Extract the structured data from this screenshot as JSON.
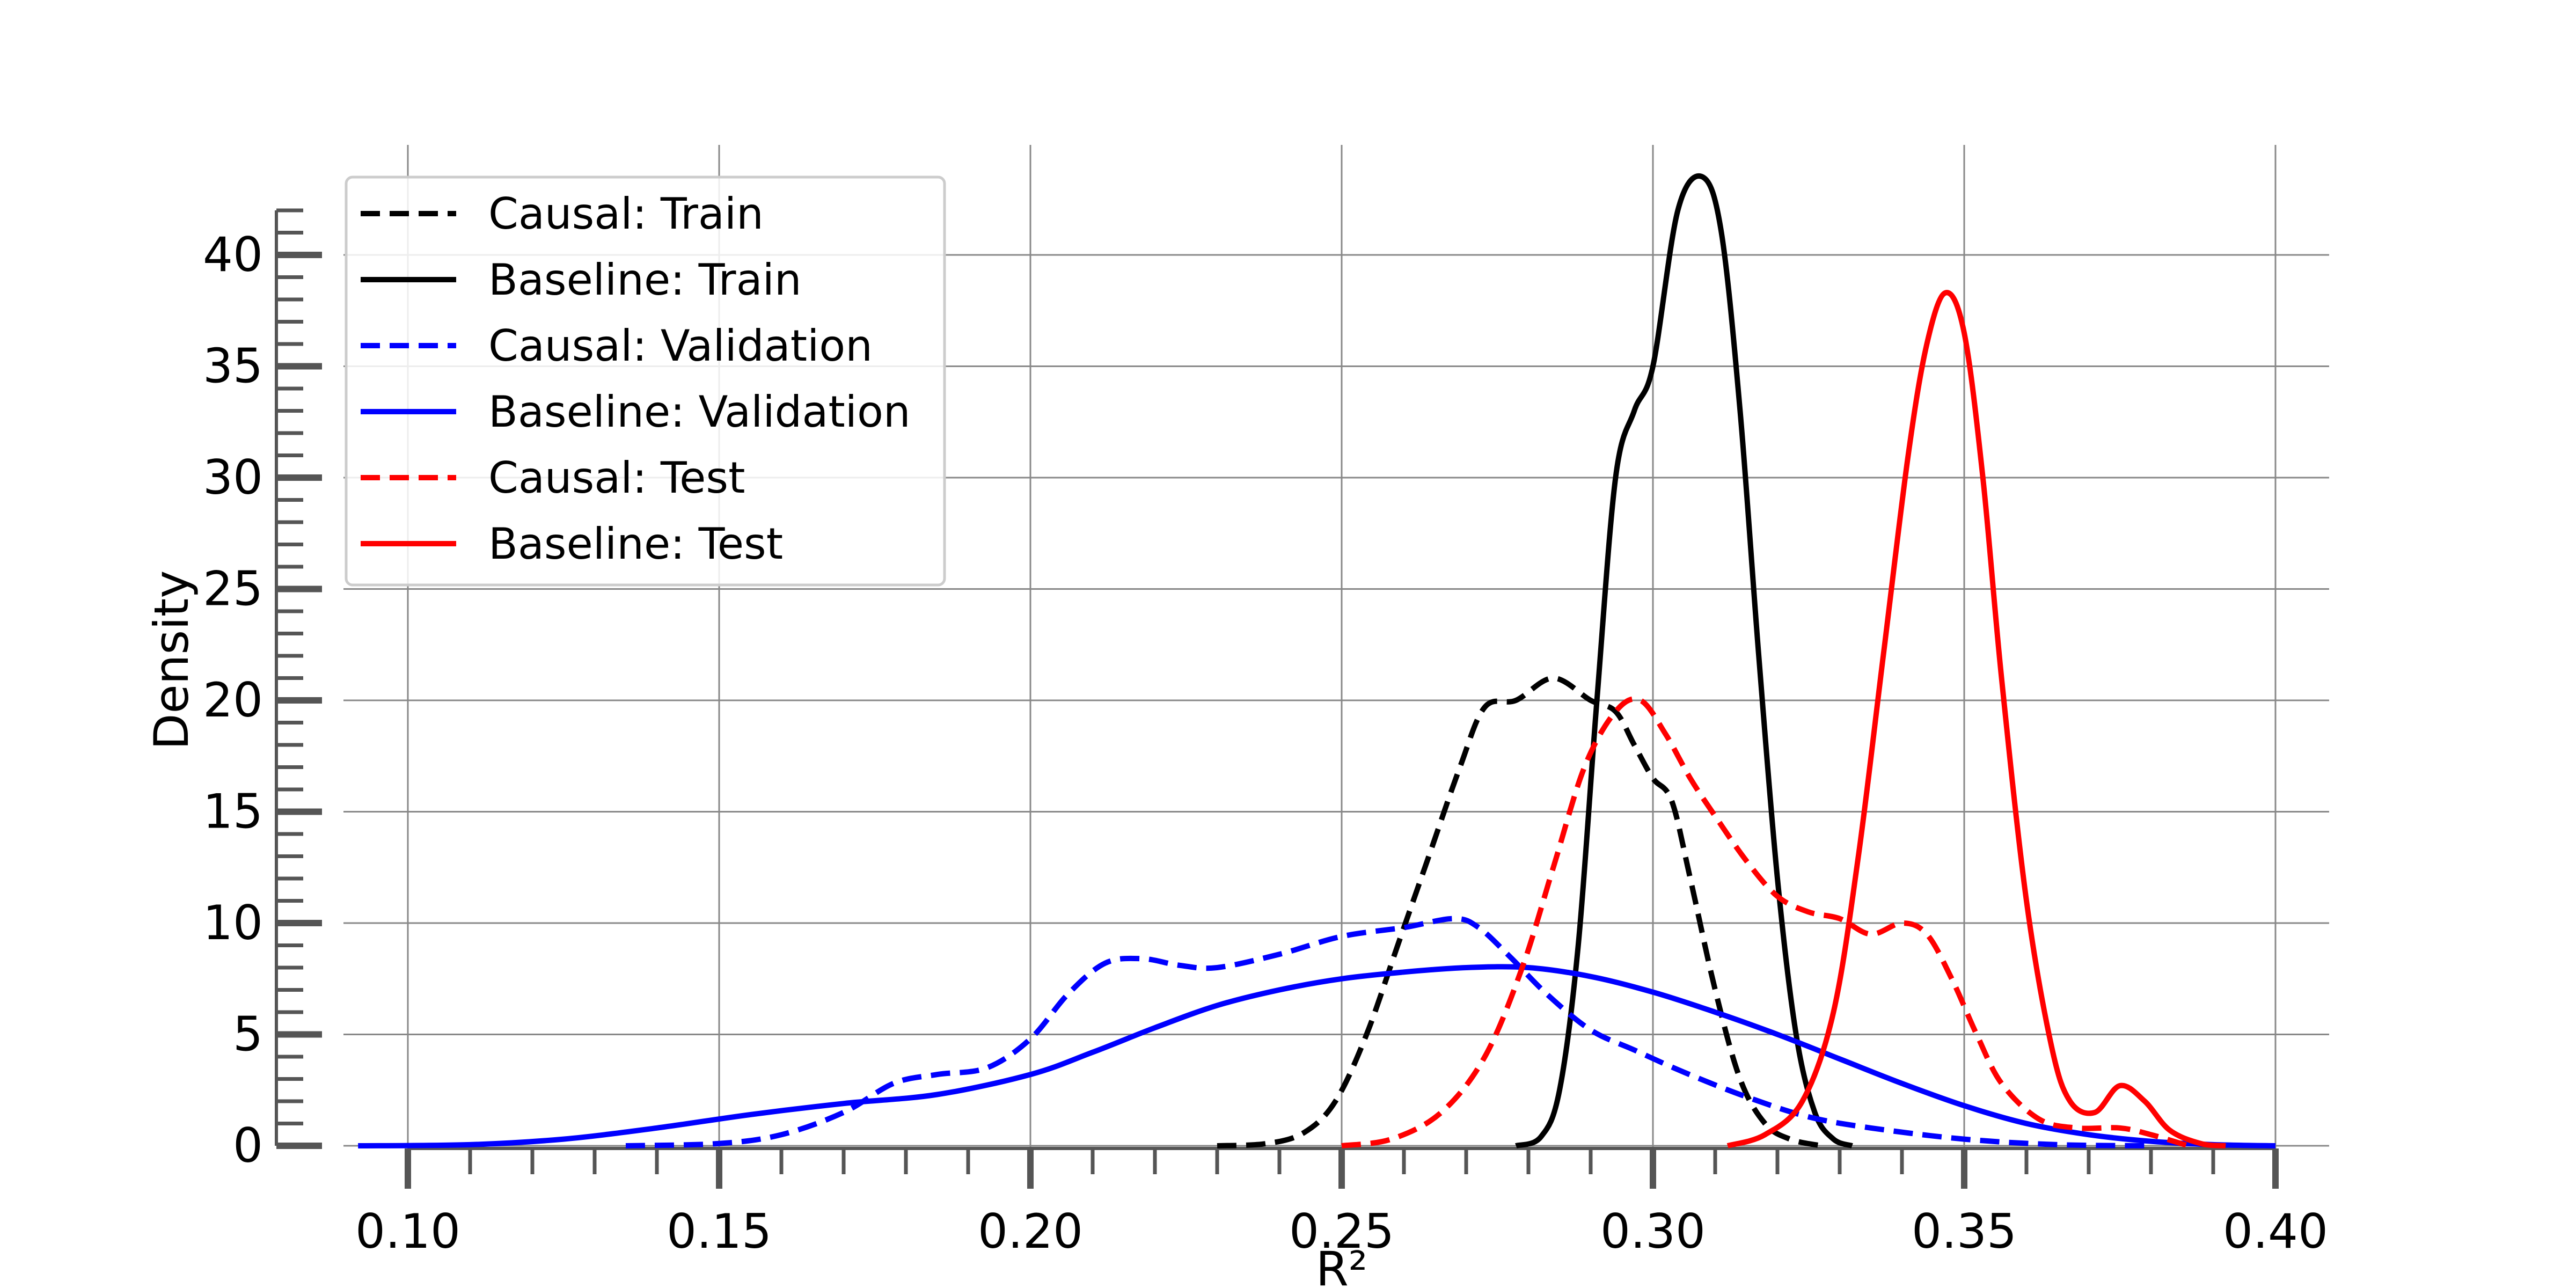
{
  "chart_data": {
    "type": "line",
    "title": "",
    "xlabel": "R²",
    "ylabel": "Density",
    "xlim": [
      0.09,
      0.41
    ],
    "ylim": [
      -1,
      46
    ],
    "x_ticks": [
      0.1,
      0.15,
      0.2,
      0.25,
      0.3,
      0.35,
      0.4
    ],
    "x_tick_labels": [
      "0.10",
      "0.15",
      "0.20",
      "0.25",
      "0.30",
      "0.35",
      "0.40"
    ],
    "y_ticks": [
      0,
      5,
      10,
      15,
      20,
      25,
      30,
      35,
      40
    ],
    "y_tick_labels": [
      "0",
      "5",
      "10",
      "15",
      "20",
      "25",
      "30",
      "35",
      "40"
    ],
    "grid": true,
    "legend_position": "upper-left",
    "series": [
      {
        "name": "Causal: Train",
        "color": "#000000",
        "dashed": true,
        "points": [
          [
            0.23,
            0
          ],
          [
            0.238,
            0.1
          ],
          [
            0.244,
            0.6
          ],
          [
            0.249,
            2
          ],
          [
            0.254,
            5
          ],
          [
            0.259,
            9
          ],
          [
            0.264,
            13
          ],
          [
            0.269,
            17
          ],
          [
            0.273,
            19.7
          ],
          [
            0.278,
            20
          ],
          [
            0.284,
            21
          ],
          [
            0.29,
            20
          ],
          [
            0.294,
            19.5
          ],
          [
            0.297,
            18
          ],
          [
            0.3,
            16.5
          ],
          [
            0.303,
            15.5
          ],
          [
            0.306,
            12
          ],
          [
            0.31,
            7
          ],
          [
            0.314,
            3
          ],
          [
            0.318,
            1
          ],
          [
            0.322,
            0.3
          ],
          [
            0.327,
            0
          ]
        ]
      },
      {
        "name": "Baseline: Train",
        "color": "#000000",
        "dashed": false,
        "points": [
          [
            0.278,
            0
          ],
          [
            0.282,
            0.4
          ],
          [
            0.285,
            2.5
          ],
          [
            0.288,
            9
          ],
          [
            0.291,
            20
          ],
          [
            0.294,
            30
          ],
          [
            0.297,
            33
          ],
          [
            0.3,
            35
          ],
          [
            0.304,
            42
          ],
          [
            0.308,
            43.5
          ],
          [
            0.311,
            41
          ],
          [
            0.314,
            33
          ],
          [
            0.317,
            22
          ],
          [
            0.32,
            12
          ],
          [
            0.323,
            5
          ],
          [
            0.326,
            1.5
          ],
          [
            0.329,
            0.3
          ],
          [
            0.332,
            0
          ]
        ]
      },
      {
        "name": "Causal: Validation",
        "color": "#0000ff",
        "dashed": true,
        "points": [
          [
            0.135,
            0
          ],
          [
            0.15,
            0.1
          ],
          [
            0.16,
            0.5
          ],
          [
            0.17,
            1.5
          ],
          [
            0.178,
            2.8
          ],
          [
            0.185,
            3.2
          ],
          [
            0.193,
            3.5
          ],
          [
            0.2,
            4.8
          ],
          [
            0.206,
            6.8
          ],
          [
            0.212,
            8.2
          ],
          [
            0.218,
            8.4
          ],
          [
            0.224,
            8.1
          ],
          [
            0.23,
            8.0
          ],
          [
            0.24,
            8.6
          ],
          [
            0.25,
            9.4
          ],
          [
            0.26,
            9.8
          ],
          [
            0.268,
            10.2
          ],
          [
            0.272,
            9.8
          ],
          [
            0.277,
            8.5
          ],
          [
            0.283,
            6.8
          ],
          [
            0.29,
            5.2
          ],
          [
            0.297,
            4.3
          ],
          [
            0.305,
            3.3
          ],
          [
            0.315,
            2.2
          ],
          [
            0.325,
            1.3
          ],
          [
            0.335,
            0.8
          ],
          [
            0.35,
            0.3
          ],
          [
            0.365,
            0.05
          ],
          [
            0.38,
            0
          ]
        ]
      },
      {
        "name": "Baseline: Validation",
        "color": "#0000ff",
        "dashed": false,
        "points": [
          [
            0.092,
            0
          ],
          [
            0.11,
            0.05
          ],
          [
            0.125,
            0.3
          ],
          [
            0.14,
            0.8
          ],
          [
            0.155,
            1.4
          ],
          [
            0.17,
            1.9
          ],
          [
            0.185,
            2.3
          ],
          [
            0.2,
            3.2
          ],
          [
            0.21,
            4.2
          ],
          [
            0.22,
            5.3
          ],
          [
            0.23,
            6.3
          ],
          [
            0.24,
            7.0
          ],
          [
            0.25,
            7.5
          ],
          [
            0.26,
            7.8
          ],
          [
            0.27,
            8.0
          ],
          [
            0.28,
            8.0
          ],
          [
            0.29,
            7.6
          ],
          [
            0.3,
            6.9
          ],
          [
            0.31,
            6.0
          ],
          [
            0.32,
            5.0
          ],
          [
            0.33,
            3.9
          ],
          [
            0.34,
            2.8
          ],
          [
            0.35,
            1.8
          ],
          [
            0.36,
            1.0
          ],
          [
            0.37,
            0.5
          ],
          [
            0.38,
            0.2
          ],
          [
            0.39,
            0.05
          ],
          [
            0.4,
            0
          ]
        ]
      },
      {
        "name": "Causal: Test",
        "color": "#ff0000",
        "dashed": true,
        "points": [
          [
            0.25,
            0
          ],
          [
            0.258,
            0.3
          ],
          [
            0.266,
            1.5
          ],
          [
            0.273,
            4
          ],
          [
            0.279,
            8
          ],
          [
            0.284,
            12.5
          ],
          [
            0.289,
            17
          ],
          [
            0.294,
            19.5
          ],
          [
            0.298,
            20
          ],
          [
            0.302,
            18.5
          ],
          [
            0.306,
            16.5
          ],
          [
            0.31,
            14.8
          ],
          [
            0.315,
            12.8
          ],
          [
            0.32,
            11.2
          ],
          [
            0.325,
            10.5
          ],
          [
            0.33,
            10.2
          ],
          [
            0.335,
            9.5
          ],
          [
            0.34,
            10
          ],
          [
            0.344,
            9.5
          ],
          [
            0.348,
            7.5
          ],
          [
            0.352,
            5
          ],
          [
            0.356,
            2.8
          ],
          [
            0.362,
            1.2
          ],
          [
            0.368,
            0.8
          ],
          [
            0.375,
            0.8
          ],
          [
            0.38,
            0.5
          ],
          [
            0.386,
            0
          ]
        ]
      },
      {
        "name": "Baseline: Test",
        "color": "#ff0000",
        "dashed": false,
        "points": [
          [
            0.312,
            0
          ],
          [
            0.318,
            0.5
          ],
          [
            0.324,
            2
          ],
          [
            0.329,
            6
          ],
          [
            0.333,
            13
          ],
          [
            0.337,
            22
          ],
          [
            0.341,
            31
          ],
          [
            0.344,
            36
          ],
          [
            0.347,
            38.3
          ],
          [
            0.35,
            36.5
          ],
          [
            0.353,
            30
          ],
          [
            0.356,
            21
          ],
          [
            0.36,
            11
          ],
          [
            0.364,
            4.5
          ],
          [
            0.367,
            2
          ],
          [
            0.371,
            1.5
          ],
          [
            0.375,
            2.7
          ],
          [
            0.379,
            2
          ],
          [
            0.383,
            0.7
          ],
          [
            0.388,
            0.1
          ],
          [
            0.392,
            0
          ]
        ]
      }
    ]
  }
}
